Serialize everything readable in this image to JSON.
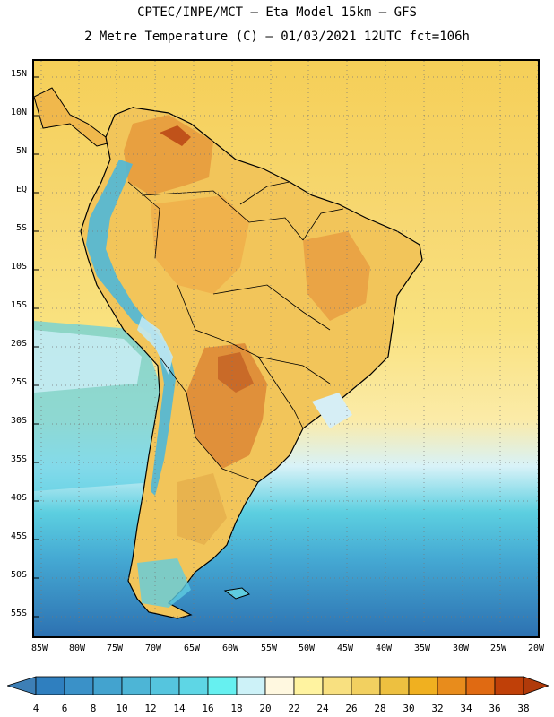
{
  "title": {
    "line1": "CPTEC/INPE/MCT –  Eta Model 15km – GFS",
    "line2": "2 Metre Temperature (C) – 01/03/2021 12UTC fct=106h"
  },
  "map": {
    "lat_labels": [
      "15N",
      "10N",
      "5N",
      "EQ",
      "5S",
      "10S",
      "15S",
      "20S",
      "25S",
      "30S",
      "35S",
      "40S",
      "45S",
      "50S",
      "55S"
    ],
    "lon_labels": [
      "85W",
      "80W",
      "75W",
      "70W",
      "65W",
      "60W",
      "55W",
      "50W",
      "45W",
      "40W",
      "35W",
      "30W",
      "25W",
      "20W"
    ],
    "grid": "dotted"
  },
  "colorbar": {
    "labels": [
      "4",
      "6",
      "8",
      "10",
      "12",
      "14",
      "16",
      "18",
      "20",
      "22",
      "24",
      "26",
      "28",
      "30",
      "32",
      "34",
      "36",
      "38"
    ],
    "colors": [
      "#2f7fbf",
      "#3a91c8",
      "#43a3cf",
      "#4db5d6",
      "#55c5de",
      "#5ed6e5",
      "#66f0f0",
      "#cdf2f8",
      "#fff8e0",
      "#fff3a0",
      "#f8e080",
      "#f2d060",
      "#edc040",
      "#f0b020",
      "#e88c1c",
      "#e06a12",
      "#c04008"
    ],
    "underflow_color": "#3d7fb6",
    "overflow_color": "#b03a0a"
  }
}
